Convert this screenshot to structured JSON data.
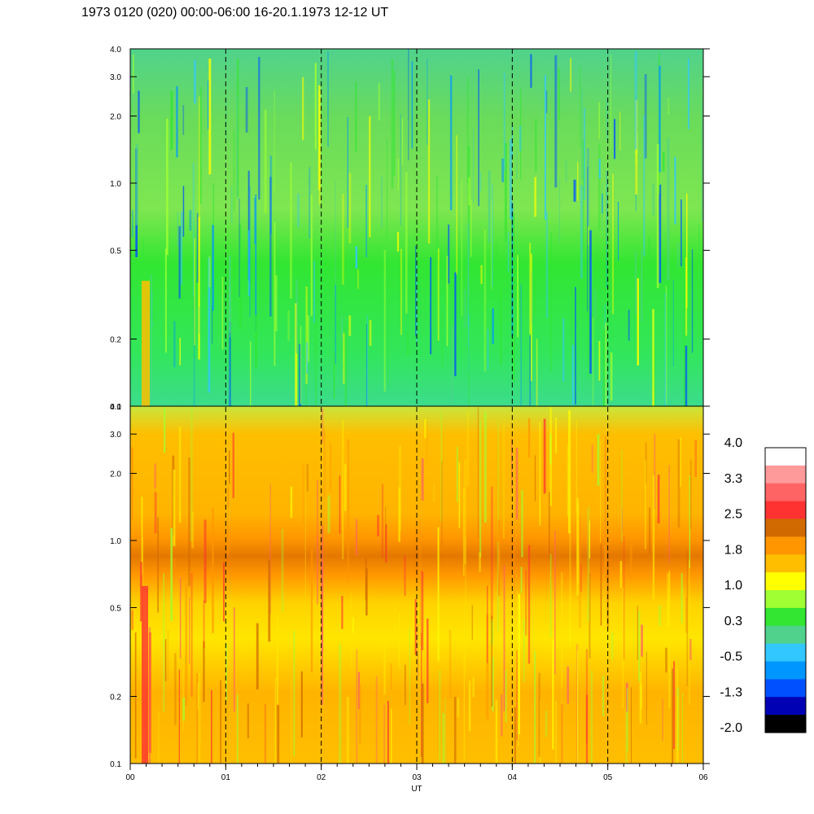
{
  "chart_data": {
    "type": "heatmap",
    "title": "1973 0120 (020) 00:00-06:00 16-20.1.1973  12-12 UT",
    "xlabel": "UT",
    "x_ticks": [
      "00",
      "01",
      "02",
      "03",
      "04",
      "05",
      "06"
    ],
    "xlim": [
      0,
      6
    ],
    "panels": [
      {
        "id": "upper",
        "y_scale": "log",
        "ylim": [
          0.1,
          4.0
        ],
        "y_ticks": [
          "0.1",
          "0.2",
          "0.5",
          "1.0",
          "2.0",
          "3.0",
          "4.0"
        ],
        "y_tick_values": [
          0.1,
          0.2,
          0.5,
          1.0,
          2.0,
          3.0,
          4.0
        ],
        "dominant_level": "0.3"
      },
      {
        "id": "lower",
        "y_scale": "log",
        "ylim": [
          0.1,
          4.0
        ],
        "y_ticks": [
          "0.1",
          "0.2",
          "0.5",
          "1.0",
          "2.0",
          "3.0",
          "4.0"
        ],
        "y_tick_values": [
          0.1,
          0.2,
          0.5,
          1.0,
          2.0,
          3.0,
          4.0
        ],
        "dominant_level": "1.4"
      }
    ],
    "dashed_vertical_lines_at_x": [
      1,
      2,
      3,
      4,
      5
    ],
    "colorbar": {
      "labels": [
        "4.0",
        "3.3",
        "2.5",
        "1.8",
        "1.0",
        "0.3",
        "-0.5",
        "-1.3",
        "-2.0"
      ],
      "colors": [
        "#ffffff",
        "#ff9a9a",
        "#ff6464",
        "#ff3232",
        "#d06a00",
        "#ff9600",
        "#ffbe00",
        "#ffff00",
        "#a0ff32",
        "#32e632",
        "#50d28c",
        "#32c8ff",
        "#0096ff",
        "#0050ff",
        "#0000b4",
        "#000000"
      ]
    }
  }
}
